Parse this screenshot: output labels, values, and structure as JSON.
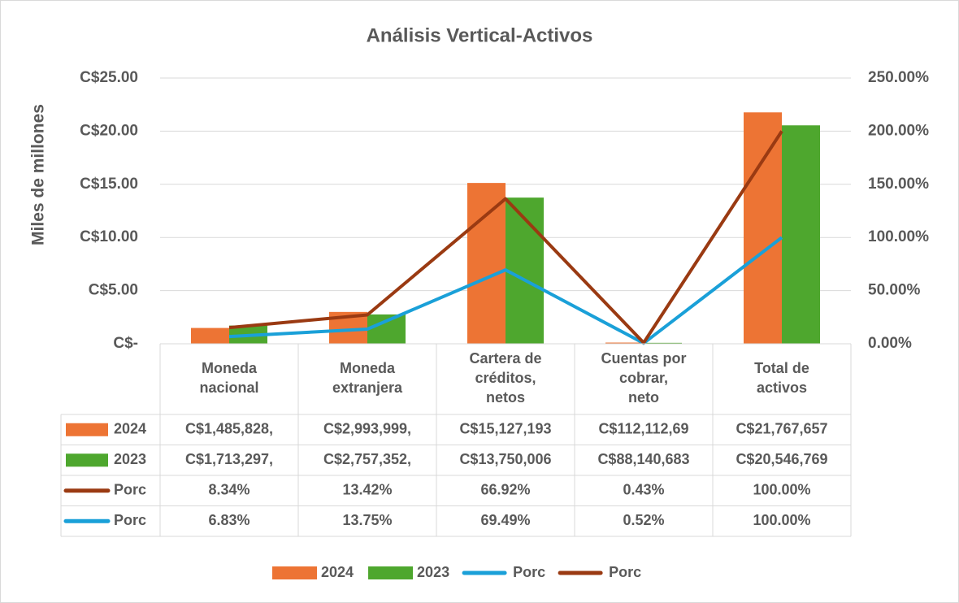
{
  "chart_data": {
    "type": "bar_line",
    "title": "Análisis Vertical-Activos",
    "y_label": "Miles de millones",
    "categories": [
      "Moneda nacional",
      "Moneda extranjera",
      "Cartera de créditos, netos",
      "Cuentas por cobrar, neto",
      "Total de activos"
    ],
    "series": [
      {
        "name": "2024",
        "type": "bar",
        "color": "#ed7434",
        "values": [
          1.485828,
          2.993999,
          15.127193,
          0.1121127,
          21.767657
        ],
        "value_labels": [
          "C$1,485,828,",
          "C$2,993,999,",
          "C$15,127,193",
          "C$112,112,69",
          "C$21,767,657"
        ]
      },
      {
        "name": "2023",
        "type": "bar",
        "color": "#4ea72e",
        "values": [
          1.713297,
          2.757352,
          13.750006,
          0.088140683,
          20.546769
        ],
        "value_labels": [
          "C$1,713,297,",
          "C$2,757,352,",
          "C$13,750,006",
          "C$88,140,683",
          "C$20,546,769"
        ]
      },
      {
        "name": "Porc",
        "type": "line",
        "axis": "y2",
        "color": "#1aa0d8",
        "values": [
          6.83,
          13.75,
          69.49,
          0.52,
          100
        ],
        "value_labels": [
          "6.83%",
          "13.75%",
          "69.49%",
          "0.52%",
          "100.00%"
        ]
      },
      {
        "name": "Porc",
        "type": "line",
        "axis": "y2",
        "color": "#9a3a12",
        "values": [
          8.34,
          13.42,
          66.92,
          0.43,
          100
        ],
        "value_labels": [
          "8.34%",
          "13.42%",
          "66.92%",
          "0.43%",
          "100.00%"
        ]
      }
    ],
    "stacked_lines": true,
    "ylim": [
      0,
      25
    ],
    "yticks": [
      {
        "value": 0,
        "label": "C$-"
      },
      {
        "value": 5,
        "label": "C$5.00"
      },
      {
        "value": 10,
        "label": "C$10.00"
      },
      {
        "value": 15,
        "label": "C$15.00"
      },
      {
        "value": 20,
        "label": "C$20.00"
      },
      {
        "value": 25,
        "label": "C$25.00"
      }
    ],
    "y2lim": [
      0,
      250
    ],
    "y2ticks": [
      {
        "value": 0,
        "label": "0.00%"
      },
      {
        "value": 50,
        "label": "50.00%"
      },
      {
        "value": 100,
        "label": "100.00%"
      },
      {
        "value": 150,
        "label": "150.00%"
      },
      {
        "value": 200,
        "label": "200.00%"
      },
      {
        "value": 250,
        "label": "250.00%"
      }
    ],
    "grid": true,
    "legend": "bottom"
  }
}
